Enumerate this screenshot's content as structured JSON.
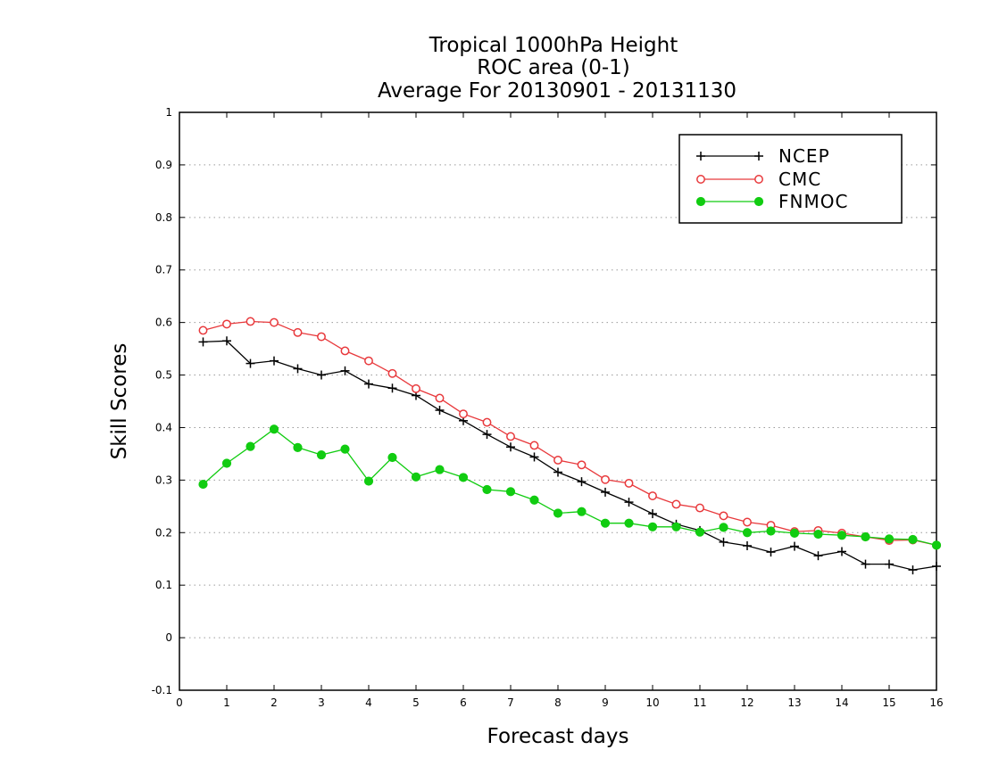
{
  "chart_data": {
    "type": "line",
    "title": [
      "Tropical 1000hPa Height",
      "ROC area (0-1)",
      "Average For 20130901 - 20131130"
    ],
    "xlabel": "Forecast days",
    "ylabel": "Skill Scores",
    "xlim": [
      0,
      16
    ],
    "ylim": [
      -0.1,
      1
    ],
    "xticks": [
      0,
      1,
      2,
      3,
      4,
      5,
      6,
      7,
      8,
      9,
      10,
      11,
      12,
      13,
      14,
      15,
      16
    ],
    "yticks": [
      -0.1,
      0,
      0.1,
      0.2,
      0.3,
      0.4,
      0.5,
      0.6,
      0.7,
      0.8,
      0.9,
      1
    ],
    "ytick_labels": [
      "-0.1",
      "0",
      "0.1",
      "0.2",
      "0.3",
      "0.4",
      "0.5",
      "0.6",
      "0.7",
      "0.8",
      "0.9",
      "1"
    ],
    "grid": "horizontal dotted",
    "legend_position": "top-right",
    "x": [
      0.5,
      1.0,
      1.5,
      2.0,
      2.5,
      3.0,
      3.5,
      4.0,
      4.5,
      5.0,
      5.5,
      6.0,
      6.5,
      7.0,
      7.5,
      8.0,
      8.5,
      9.0,
      9.5,
      10.0,
      10.5,
      11.0,
      11.5,
      12.0,
      12.5,
      13.0,
      13.5,
      14.0,
      14.5,
      15.0,
      15.5,
      16.0
    ],
    "series": [
      {
        "name": "NCEP",
        "color": "#000000",
        "marker": "plus",
        "values": [
          0.563,
          0.565,
          0.522,
          0.527,
          0.512,
          0.5,
          0.508,
          0.483,
          0.475,
          0.461,
          0.433,
          0.413,
          0.387,
          0.363,
          0.344,
          0.315,
          0.297,
          0.277,
          0.258,
          0.236,
          0.216,
          0.204,
          0.182,
          0.175,
          0.163,
          0.174,
          0.156,
          0.164,
          0.14,
          0.14,
          0.129,
          0.136
        ]
      },
      {
        "name": "CMC",
        "color": "#e8393c",
        "marker": "open-circle",
        "values": [
          0.585,
          0.597,
          0.602,
          0.6,
          0.581,
          0.573,
          0.546,
          0.527,
          0.503,
          0.474,
          0.456,
          0.426,
          0.41,
          0.383,
          0.366,
          0.338,
          0.329,
          0.301,
          0.294,
          0.27,
          0.254,
          0.247,
          0.232,
          0.22,
          0.214,
          0.202,
          0.204,
          0.199,
          0.192,
          0.185,
          0.186,
          0.176
        ]
      },
      {
        "name": "FNMOC",
        "color": "#11cc11",
        "marker": "filled-circle",
        "values": [
          0.292,
          0.332,
          0.364,
          0.397,
          0.362,
          0.348,
          0.359,
          0.298,
          0.343,
          0.306,
          0.32,
          0.305,
          0.282,
          0.278,
          0.262,
          0.237,
          0.24,
          0.218,
          0.218,
          0.211,
          0.211,
          0.201,
          0.21,
          0.2,
          0.203,
          0.199,
          0.197,
          0.195,
          0.192,
          0.188,
          0.187,
          0.176
        ]
      }
    ]
  }
}
